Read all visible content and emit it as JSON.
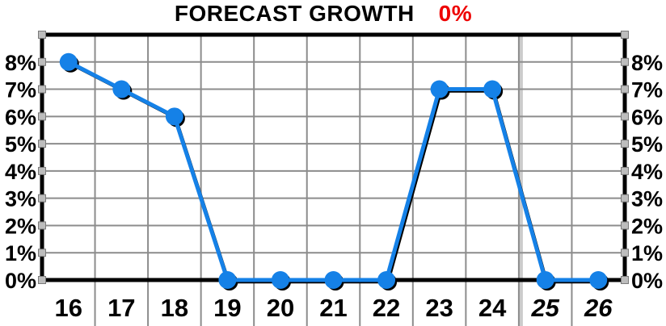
{
  "title": {
    "text": "FORECAST GROWTH",
    "highlight": "0%",
    "highlight_color": "#ee0000"
  },
  "chart_data": {
    "type": "line",
    "title": "FORECAST GROWTH 0%",
    "categories": [
      "16",
      "17",
      "18",
      "19",
      "20",
      "21",
      "22",
      "23",
      "24",
      "25",
      "26"
    ],
    "values": [
      8,
      7,
      6,
      0,
      0,
      0,
      0,
      7,
      7,
      0,
      0
    ],
    "italic_categories": [
      "25",
      "26"
    ],
    "y_tick_labels_top_to_bottom": [
      "8%",
      "7%",
      "6%",
      "5%",
      "4%",
      "3%",
      "2%",
      "1%",
      "0%"
    ],
    "y_axis": {
      "min": 0,
      "max": 9,
      "tick_step": 1,
      "unit": "%",
      "labeled_max": 8
    },
    "xlabel": "",
    "ylabel": "",
    "ylim": [
      0,
      9
    ],
    "grid": true,
    "legend_position": "none",
    "dual_y_axis": true,
    "forecast_divider_after_index": 8,
    "colors": {
      "series_line": "#1581e7",
      "series_shadow": "#000000",
      "gridline": "#8c8c8c",
      "forecast_divider": "#cbcbcb",
      "frame": "#000000",
      "tick_square_fill": "#bdbdbd",
      "tick_square_stroke": "#7a7a7a"
    }
  }
}
